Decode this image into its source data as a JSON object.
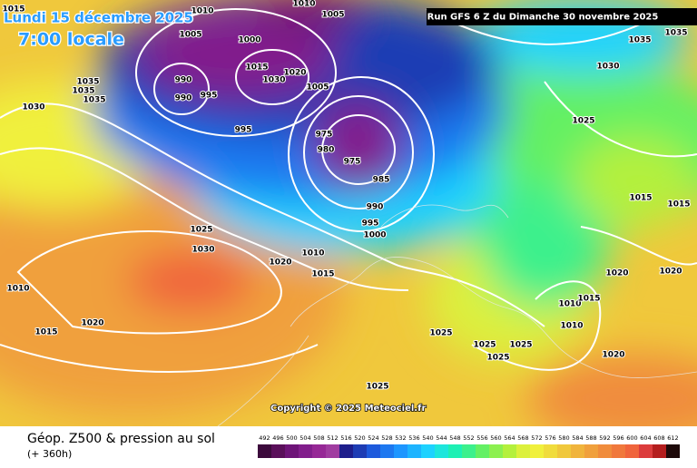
{
  "header": {
    "date": "Lundi 15 décembre 2025",
    "time": "7:00 locale",
    "run": "Run GFS 6 Z du Dimanche 30 novembre 2025"
  },
  "copyright": "Copyright © 2025 Meteociel.fr",
  "footer": {
    "title": "Géop. Z500 & pression au sol",
    "lead": "(+ 360h)"
  },
  "isobar_labels": [
    1015,
    1005,
    1010,
    1010,
    1005,
    990,
    990,
    995,
    1000,
    1015,
    1020,
    1030,
    1005,
    995,
    1035,
    1035,
    1035,
    1030,
    975,
    980,
    975,
    985,
    990,
    995,
    1000,
    1025,
    1030,
    1020,
    1010,
    1015,
    1010,
    1020,
    1015,
    1035,
    1030,
    1025,
    1015,
    1015,
    1020,
    1020,
    1010,
    1015,
    1010,
    1025,
    1025,
    1025,
    1025,
    1020,
    1025,
    1035
  ],
  "legend": {
    "labels": [
      492,
      496,
      500,
      504,
      508,
      512,
      516,
      520,
      524,
      528,
      532,
      536,
      540,
      544,
      548,
      552,
      556,
      560,
      564,
      568,
      572,
      576,
      580,
      584,
      588,
      592,
      596,
      600,
      604,
      608,
      612
    ],
    "colors": [
      "#3c0a3c",
      "#5a0f5a",
      "#6e1478",
      "#821e8c",
      "#962896",
      "#a03ca0",
      "#1e1e8c",
      "#1e3cb4",
      "#1e5adc",
      "#1e78f0",
      "#1e96ff",
      "#1eb4ff",
      "#1ed2ff",
      "#1ee6dc",
      "#1ef0b4",
      "#3cf08c",
      "#64f064",
      "#8cf050",
      "#b4f03c",
      "#dcf03c",
      "#f0f03c",
      "#f0dc3c",
      "#f0c83c",
      "#f0b43c",
      "#f0a03c",
      "#f08c3c",
      "#f0783c",
      "#f0643c",
      "#dc3c3c",
      "#b41e1e",
      "#1e0a0a"
    ]
  }
}
